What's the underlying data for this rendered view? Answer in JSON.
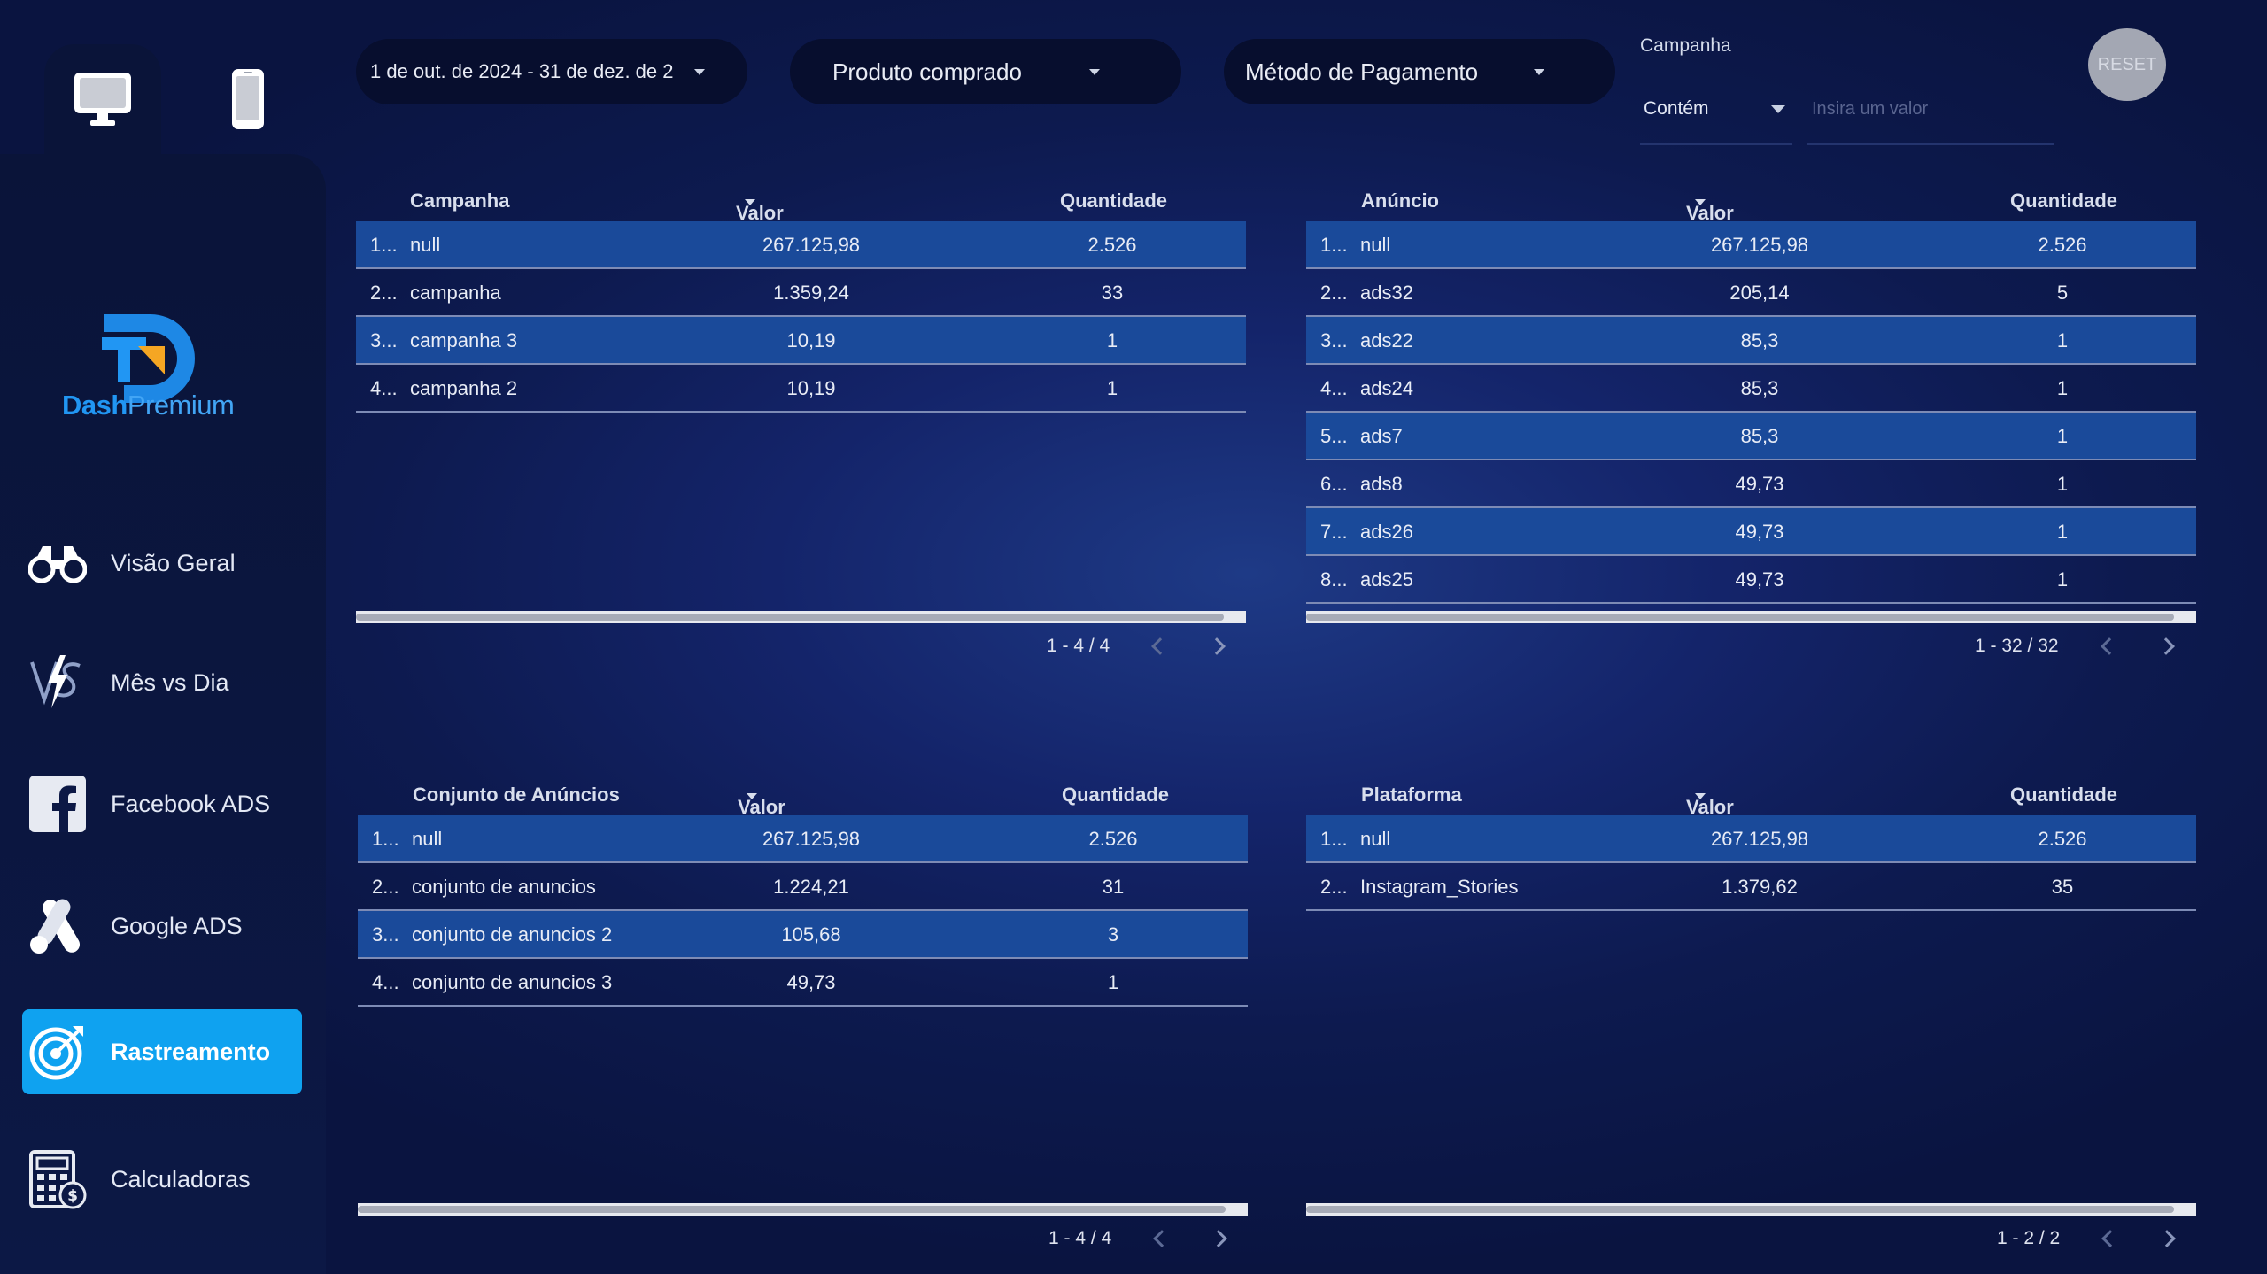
{
  "sidebar": {
    "logo_text": {
      "dash": "Dash",
      "premium": "Premium"
    },
    "devices": [
      {
        "name": "desktop-icon",
        "active": true
      },
      {
        "name": "mobile-icon",
        "active": false
      }
    ],
    "nav": [
      {
        "label": "Visão Geral",
        "icon": "binoculars-icon",
        "active": false
      },
      {
        "label": "Mês vs Dia",
        "icon": "versus-icon",
        "active": false
      },
      {
        "label": "Facebook ADS",
        "icon": "facebook-icon",
        "active": false
      },
      {
        "label": "Google ADS",
        "icon": "google-ads-icon",
        "active": false
      },
      {
        "label": "Rastreamento",
        "icon": "target-icon",
        "active": true
      },
      {
        "label": "Calculadoras",
        "icon": "calculator-icon",
        "active": false
      }
    ]
  },
  "filters": {
    "date_range": "1 de out. de 2024 - 31 de dez. de 2",
    "product": "Produto comprado",
    "payment": "Método de Pagamento",
    "campaign_label": "Campanha",
    "campaign_operator": "Contém",
    "campaign_placeholder": "Insira um valor",
    "reset": "RESET"
  },
  "tables": {
    "campanha": {
      "headers": [
        "Campanha",
        "Valor Liquido",
        "Quantidade"
      ],
      "rows": [
        {
          "n": "1...",
          "name": "null",
          "valor": "267.125,98",
          "qtd": "2.526"
        },
        {
          "n": "2...",
          "name": "campanha",
          "valor": "1.359,24",
          "qtd": "33"
        },
        {
          "n": "3...",
          "name": "campanha 3",
          "valor": "10,19",
          "qtd": "1"
        },
        {
          "n": "4...",
          "name": "campanha 2",
          "valor": "10,19",
          "qtd": "1"
        }
      ],
      "pagination": "1 - 4 / 4"
    },
    "anuncio": {
      "headers": [
        "Anúncio",
        "Valor Liquido",
        "Quantidade"
      ],
      "rows": [
        {
          "n": "1...",
          "name": "null",
          "valor": "267.125,98",
          "qtd": "2.526"
        },
        {
          "n": "2...",
          "name": "ads32",
          "valor": "205,14",
          "qtd": "5"
        },
        {
          "n": "3...",
          "name": "ads22",
          "valor": "85,3",
          "qtd": "1"
        },
        {
          "n": "4...",
          "name": "ads24",
          "valor": "85,3",
          "qtd": "1"
        },
        {
          "n": "5...",
          "name": "ads7",
          "valor": "85,3",
          "qtd": "1"
        },
        {
          "n": "6...",
          "name": "ads8",
          "valor": "49,73",
          "qtd": "1"
        },
        {
          "n": "7...",
          "name": "ads26",
          "valor": "49,73",
          "qtd": "1"
        },
        {
          "n": "8...",
          "name": "ads25",
          "valor": "49,73",
          "qtd": "1"
        }
      ],
      "pagination": "1 - 32 / 32"
    },
    "conjunto": {
      "headers": [
        "Conjunto de Anúncios",
        "Valor Liquido",
        "Quantidade"
      ],
      "rows": [
        {
          "n": "1...",
          "name": "null",
          "valor": "267.125,98",
          "qtd": "2.526"
        },
        {
          "n": "2...",
          "name": "conjunto de anuncios",
          "valor": "1.224,21",
          "qtd": "31"
        },
        {
          "n": "3...",
          "name": "conjunto de anuncios 2",
          "valor": "105,68",
          "qtd": "3"
        },
        {
          "n": "4...",
          "name": "conjunto de anuncios 3",
          "valor": "49,73",
          "qtd": "1"
        }
      ],
      "pagination": "1 - 4 / 4"
    },
    "plataforma": {
      "headers": [
        "Plataforma",
        "Valor Liquido",
        "Quantidade"
      ],
      "rows": [
        {
          "n": "1...",
          "name": "null",
          "valor": "267.125,98",
          "qtd": "2.526"
        },
        {
          "n": "2...",
          "name": "Instagram_Stories",
          "valor": "1.379,62",
          "qtd": "35"
        }
      ],
      "pagination": "1 - 2 / 2"
    }
  },
  "colors": {
    "accent": "#0fa2f0",
    "row_highlight": "#1a4a9a",
    "background": "#14246a"
  }
}
